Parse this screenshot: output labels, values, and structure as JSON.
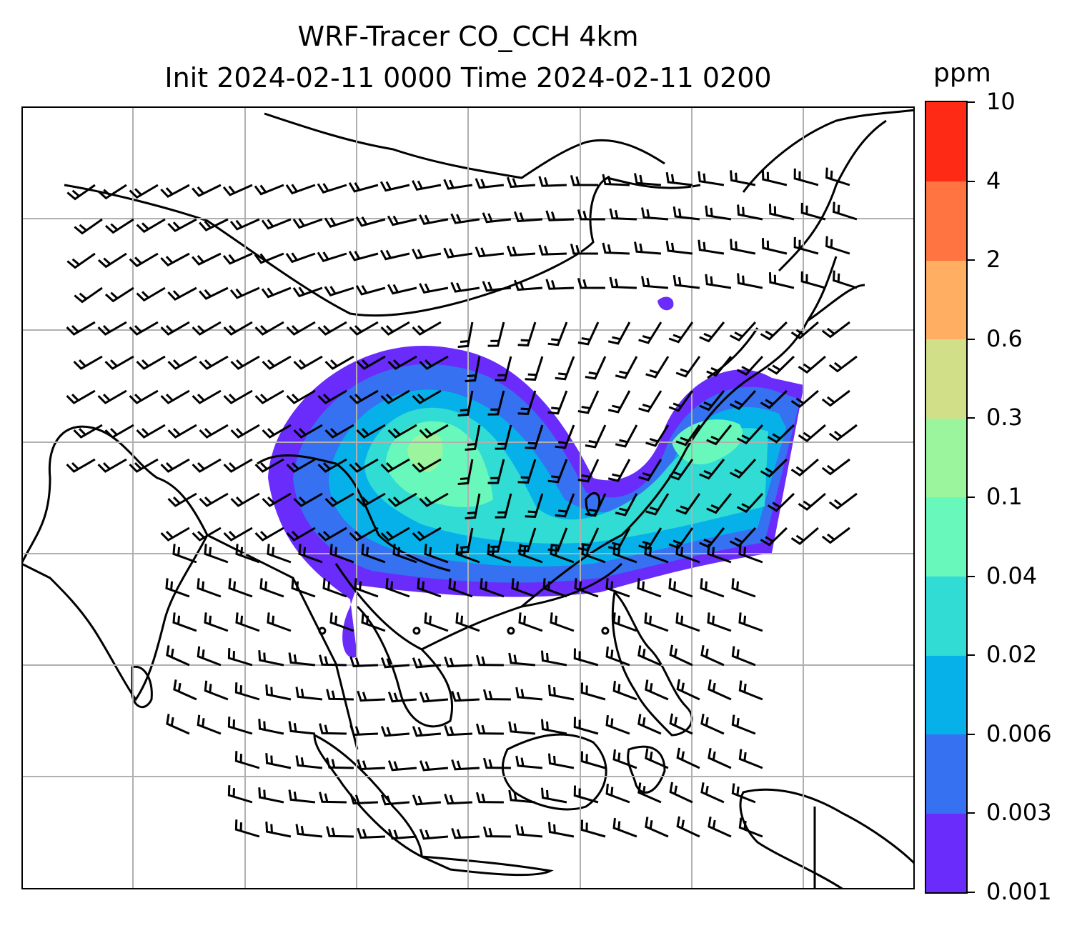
{
  "title": {
    "line1": "WRF-Tracer CO_CCH 4km",
    "line2": "Init 2024-02-11 0000 Time 2024-02-11 0200"
  },
  "colorbar": {
    "unit": "ppm",
    "levels": [
      "0.001",
      "0.003",
      "0.006",
      "0.02",
      "0.04",
      "0.1",
      "0.3",
      "0.6",
      "2",
      "4",
      "10"
    ],
    "colors": [
      "#6a2cfb",
      "#3571f0",
      "#06b1ea",
      "#30dcd4",
      "#69f8bc",
      "#9bf59d",
      "#d0df88",
      "#ffae62",
      "#ff7440",
      "#ff2a16"
    ]
  },
  "map": {
    "coastline_color": "#000000",
    "grid_color": "#b0b0b0",
    "plume_levels_shown": [
      "0.001",
      "0.003",
      "0.006",
      "0.02",
      "0.04",
      "0.1"
    ]
  }
}
